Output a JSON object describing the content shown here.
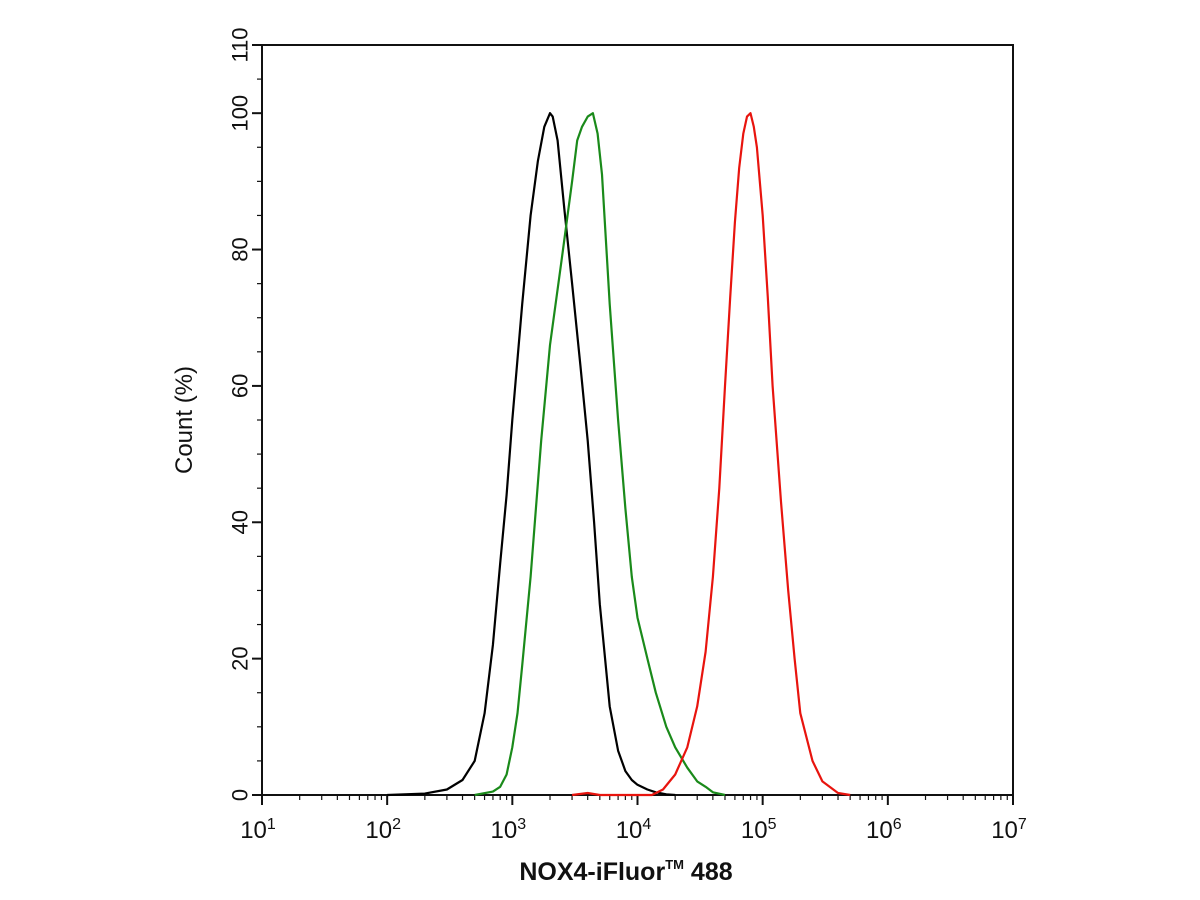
{
  "chart_data": {
    "type": "line",
    "title": "",
    "xlabel": "NOX4-iFluor™ 488",
    "xlabel_parts": {
      "main": "NOX4-iFluor",
      "tm": "TM",
      "tail": " 488"
    },
    "ylabel": "Count (%)",
    "xscale": "log",
    "xlim": [
      10,
      10000000
    ],
    "ylim": [
      0,
      110
    ],
    "yticks": [
      0,
      20,
      40,
      60,
      80,
      100,
      110
    ],
    "xticks": [
      {
        "value": 10,
        "base": "10",
        "exp": "1"
      },
      {
        "value": 100,
        "base": "10",
        "exp": "2"
      },
      {
        "value": 1000,
        "base": "10",
        "exp": "3"
      },
      {
        "value": 10000,
        "base": "10",
        "exp": "4"
      },
      {
        "value": 100000,
        "base": "10",
        "exp": "5"
      },
      {
        "value": 1000000,
        "base": "10",
        "exp": "6"
      },
      {
        "value": 10000000,
        "base": "10",
        "exp": "7"
      }
    ],
    "grid": false,
    "legend": "none",
    "series": [
      {
        "color": "#000000",
        "x": [
          100,
          200,
          300,
          400,
          500,
          600,
          700,
          800,
          900,
          1000,
          1200,
          1400,
          1600,
          1800,
          2000,
          2100,
          2300,
          2600,
          3000,
          3500,
          4000,
          4500,
          5000,
          6000,
          7000,
          8000,
          9000,
          10000,
          12000,
          14000,
          17000,
          20000
        ],
        "y": [
          0,
          0.2,
          0.8,
          2.2,
          5,
          12,
          22,
          34,
          44,
          55,
          72,
          85,
          93,
          98,
          100,
          99.5,
          96,
          86,
          75,
          63,
          52,
          40,
          28,
          13,
          6.5,
          3.5,
          2.2,
          1.5,
          0.8,
          0.4,
          0.1,
          0
        ]
      },
      {
        "color": "#1a8a1a",
        "x": [
          500,
          700,
          800,
          900,
          1000,
          1100,
          1200,
          1400,
          1700,
          2000,
          2500,
          3000,
          3300,
          3600,
          4000,
          4400,
          4800,
          5200,
          6000,
          7000,
          8000,
          9000,
          10000,
          12000,
          14000,
          17000,
          20000,
          25000,
          30000,
          35000,
          40000,
          50000
        ],
        "y": [
          0,
          0.5,
          1.2,
          3,
          7,
          12,
          19,
          32,
          52,
          66,
          79,
          90,
          96,
          98,
          99.5,
          100,
          97,
          91,
          72,
          55,
          42,
          32,
          26,
          20,
          15,
          10,
          7,
          4,
          2,
          1.2,
          0.4,
          0
        ]
      },
      {
        "color": "#e8140e",
        "x": [
          3000,
          4000,
          5000,
          10000,
          13000,
          16000,
          20000,
          25000,
          30000,
          35000,
          40000,
          45000,
          50000,
          55000,
          60000,
          65000,
          70000,
          75000,
          80000,
          85000,
          90000,
          100000,
          110000,
          120000,
          140000,
          160000,
          180000,
          200000,
          250000,
          300000,
          400000,
          500000
        ],
        "y": [
          0,
          0.3,
          0,
          0,
          0,
          0.8,
          3,
          7,
          13,
          21,
          32,
          45,
          60,
          73,
          84,
          92,
          97,
          99.5,
          100,
          98,
          95,
          85,
          73,
          60,
          43,
          30,
          20,
          12,
          5,
          2,
          0.3,
          0
        ]
      }
    ]
  }
}
